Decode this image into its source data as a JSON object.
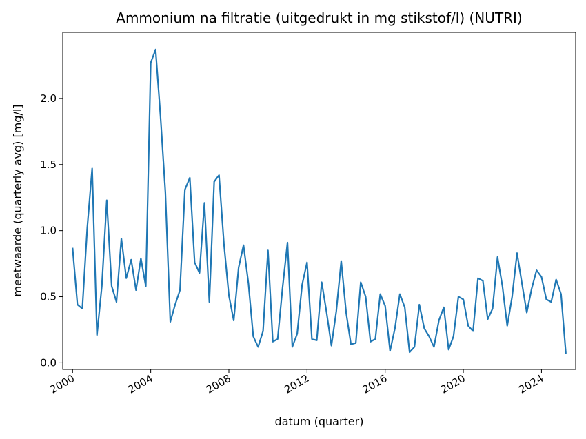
{
  "chart_data": {
    "type": "line",
    "title": "Ammonium na filtratie (uitgedrukt in mg stikstof/l) (NUTRI)",
    "xlabel": "datum (quarter)",
    "ylabel": "meetwaarde (quarterly avg) [mg/l]",
    "x_tick_labels": [
      "2000",
      "2004",
      "2008",
      "2012",
      "2016",
      "2020",
      "2024"
    ],
    "y_tick_labels": [
      "0.0",
      "0.5",
      "1.0",
      "1.5",
      "2.0"
    ],
    "xlim": [
      "1999-07-01",
      "2025-10-01"
    ],
    "ylim": [
      -0.05,
      2.5
    ],
    "grid": false,
    "legend": "none",
    "line_color": "#1f77b4",
    "series": [
      {
        "x": [
          "2000-01-01",
          "2000-04-01",
          "2000-07-01",
          "2000-10-01",
          "2001-01-01",
          "2001-04-01",
          "2001-07-01",
          "2001-10-01",
          "2002-01-01",
          "2002-04-01",
          "2002-07-01",
          "2002-10-01",
          "2003-01-01",
          "2003-04-01",
          "2003-07-01",
          "2003-10-01",
          "2004-01-01",
          "2004-04-01",
          "2004-07-01",
          "2004-10-01",
          "2005-01-01",
          "2005-04-01",
          "2005-07-01",
          "2005-10-01",
          "2006-01-01",
          "2006-04-01",
          "2006-07-01",
          "2006-10-01",
          "2007-01-01",
          "2007-04-01",
          "2007-07-01",
          "2007-10-01",
          "2008-01-01",
          "2008-04-01",
          "2008-07-01",
          "2008-10-01",
          "2009-01-01",
          "2009-04-01",
          "2009-07-01",
          "2009-10-01",
          "2010-01-01",
          "2010-04-01",
          "2010-07-01",
          "2010-10-01",
          "2011-01-01",
          "2011-04-01",
          "2011-07-01",
          "2011-10-01",
          "2012-01-01",
          "2012-04-01",
          "2012-07-01",
          "2012-10-01",
          "2013-01-01",
          "2013-04-01",
          "2013-07-01",
          "2013-10-01",
          "2014-01-01",
          "2014-04-01",
          "2014-07-01",
          "2014-10-01",
          "2015-01-01",
          "2015-04-01",
          "2015-07-01",
          "2015-10-01",
          "2016-01-01",
          "2016-04-01",
          "2016-07-01",
          "2016-10-01",
          "2017-01-01",
          "2017-04-01",
          "2017-07-01",
          "2017-10-01",
          "2018-01-01",
          "2018-04-01",
          "2018-07-01",
          "2018-10-01",
          "2019-01-01",
          "2019-04-01",
          "2019-07-01",
          "2019-10-01",
          "2020-01-01",
          "2020-04-01",
          "2020-07-01",
          "2020-10-01",
          "2021-01-01",
          "2021-04-01",
          "2021-07-01",
          "2021-10-01",
          "2022-01-01",
          "2022-04-01",
          "2022-07-01",
          "2022-10-01",
          "2023-01-01",
          "2023-04-01",
          "2023-07-01",
          "2023-10-01",
          "2024-01-01",
          "2024-04-01",
          "2024-07-01",
          "2024-10-01",
          "2025-01-01",
          "2025-04-01"
        ],
        "y": [
          0.87,
          0.44,
          0.41,
          1.02,
          1.47,
          0.21,
          0.58,
          1.23,
          0.58,
          0.46,
          0.94,
          0.64,
          0.78,
          0.55,
          0.79,
          0.58,
          2.27,
          2.37,
          1.87,
          1.29,
          0.31,
          0.44,
          0.55,
          1.31,
          1.4,
          0.76,
          0.68,
          1.21,
          0.46,
          1.37,
          1.42,
          0.9,
          0.51,
          0.32,
          0.72,
          0.89,
          0.6,
          0.2,
          0.12,
          0.24,
          0.85,
          0.16,
          0.18,
          0.57,
          0.91,
          0.12,
          0.22,
          0.59,
          0.76,
          0.18,
          0.17,
          0.61,
          0.38,
          0.13,
          0.39,
          0.77,
          0.38,
          0.14,
          0.15,
          0.61,
          0.5,
          0.16,
          0.18,
          0.52,
          0.43,
          0.09,
          0.26,
          0.52,
          0.42,
          0.08,
          0.12,
          0.44,
          0.26,
          0.2,
          0.12,
          0.32,
          0.42,
          0.1,
          0.2,
          0.5,
          0.48,
          0.28,
          0.24,
          0.64,
          0.62,
          0.33,
          0.41,
          0.8,
          0.58,
          0.28,
          0.5,
          0.83,
          0.6,
          0.38,
          0.56,
          0.7,
          0.65,
          0.48,
          0.46,
          0.63,
          0.52,
          0.07
        ]
      }
    ]
  }
}
